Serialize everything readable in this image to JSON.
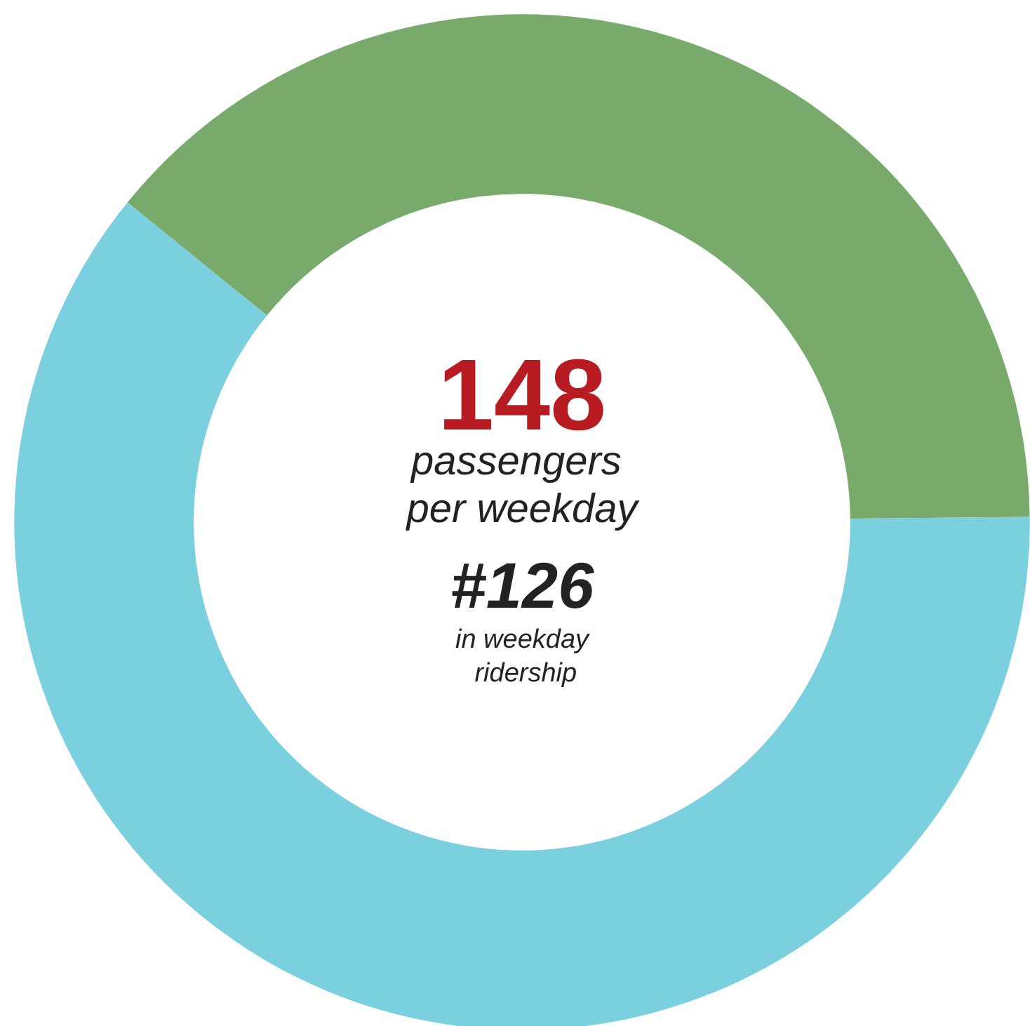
{
  "chart_data": {
    "type": "donut",
    "categories": [
      null,
      null
    ],
    "values": [
      39,
      61
    ],
    "colors": [
      "#78aa6c",
      "#7ad0de"
    ],
    "annotations": [
      "148",
      "passengers per weekday",
      "#126",
      "in weekday ridership"
    ]
  }
}
